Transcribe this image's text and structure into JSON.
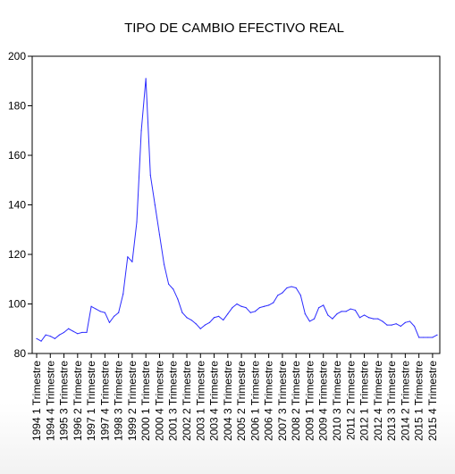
{
  "chart_data": {
    "type": "line",
    "title": "TIPO DE CAMBIO EFECTIVO REAL",
    "xlabel": "",
    "ylabel": "",
    "ylim": [
      80,
      200
    ],
    "yticks": [
      80,
      100,
      120,
      140,
      160,
      180,
      200
    ],
    "grid": false,
    "line_color": "#2b2bff",
    "x_tick_labels": [
      "1994 1 Trimestre",
      "1994 4 Trimestre",
      "1995 3 Trimestre",
      "1996 2 Trimestre",
      "1997 1 Trimestre",
      "1997 4 Trimestre",
      "1998 3 Trimestre",
      "1999 2 Trimestre",
      "2000 1 Trimestre",
      "2000 4 Trimestre",
      "2001 3 Trimestre",
      "2002 2 Trimestre",
      "2003 1 Trimestre",
      "2003 4 Trimestre",
      "2004 3 Trimestre",
      "2005 2 Trimestre",
      "2006 1 Trimestre",
      "2006 4 Trimestre",
      "2007 3 Trimestre",
      "2008 2 Trimestre",
      "2009 1 Trimestre",
      "2009 4 Trimestre",
      "2010 3 Trimestre",
      "2011 2 Trimestre",
      "2012 1 Trimestre",
      "2012 4 Trimestre",
      "2013 3 Trimestre",
      "2014 2 Trimestre",
      "2015 1 Trimestre",
      "2015 4 Trimestre"
    ],
    "series": [
      {
        "values": [
          86.0,
          85.0,
          87.5,
          87.0,
          86.0,
          87.5,
          88.5,
          90.0,
          89.0,
          88.0,
          88.5,
          88.5,
          99.0,
          98.0,
          97.0,
          96.5,
          92.5,
          95.0,
          96.5,
          104.0,
          119.0,
          117.0,
          133.0,
          170.0,
          191.0,
          152.0,
          140.0,
          128.0,
          116.0,
          108.0,
          106.0,
          102.0,
          96.5,
          94.5,
          93.5,
          92.0,
          90.0,
          91.5,
          92.5,
          94.5,
          95.0,
          93.5,
          96.0,
          98.5,
          100.0,
          99.0,
          98.5,
          96.5,
          97.0,
          98.5,
          99.0,
          99.5,
          100.5,
          103.5,
          104.5,
          106.5,
          107.0,
          106.5,
          103.5,
          96.0,
          93.0,
          94.0,
          98.5,
          99.5,
          95.5,
          94.0,
          96.0,
          97.0,
          97.0,
          98.0,
          97.5,
          94.5,
          95.5,
          94.5,
          94.0,
          94.0,
          93.0,
          91.5,
          91.5,
          92.0,
          91.0,
          92.5,
          93.0,
          91.0,
          86.5,
          86.5,
          86.5,
          86.5,
          87.5
        ]
      }
    ]
  }
}
